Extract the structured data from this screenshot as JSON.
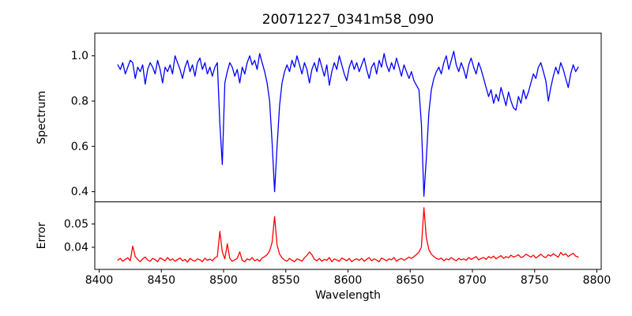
{
  "figure": {
    "title": "20071227_0341m58_090",
    "xlabel": "Wavelength"
  },
  "chart_data": {
    "type": "line",
    "title": "20071227_0341m58_090",
    "xlabel": "Wavelength",
    "grid": false,
    "legend": "none",
    "x_axis": {
      "lim": [
        8396.5,
        8803.5
      ],
      "ticks": [
        8400,
        8450,
        8500,
        8550,
        8600,
        8650,
        8700,
        8750,
        8800
      ],
      "tick_labels": [
        "8400",
        "8450",
        "8500",
        "8550",
        "8600",
        "8650",
        "8700",
        "8750",
        "8800"
      ]
    },
    "subplots": [
      {
        "name": "spectrum",
        "ylabel": "Spectrum",
        "line_color": "#0000ff",
        "ylim": [
          0.355,
          1.1
        ],
        "ytick_values": [
          1.0,
          0.8,
          0.6,
          0.4
        ],
        "yticks": [
          "1.0",
          "0.8",
          "0.6",
          "0.4"
        ],
        "absorption_line_centers": [
          8498,
          8542,
          8662
        ],
        "x_start": 8415,
        "x_step": 2,
        "values": [
          0.96,
          0.94,
          0.97,
          0.92,
          0.95,
          0.98,
          0.97,
          0.9,
          0.95,
          0.93,
          0.96,
          0.875,
          0.94,
          0.97,
          0.95,
          0.92,
          0.98,
          0.94,
          0.88,
          0.95,
          0.93,
          0.96,
          0.92,
          1.0,
          0.97,
          0.94,
          0.9,
          0.95,
          0.98,
          0.93,
          0.96,
          0.91,
          0.97,
          0.99,
          0.94,
          0.97,
          0.92,
          0.95,
          0.91,
          0.95,
          0.97,
          0.7,
          0.52,
          0.88,
          0.93,
          0.97,
          0.95,
          0.91,
          0.94,
          0.88,
          0.95,
          0.92,
          0.97,
          1.0,
          0.96,
          0.98,
          0.94,
          1.01,
          0.97,
          0.93,
          0.88,
          0.8,
          0.62,
          0.4,
          0.6,
          0.78,
          0.88,
          0.93,
          0.96,
          0.93,
          0.98,
          0.95,
          1.0,
          0.96,
          0.92,
          0.97,
          0.94,
          0.88,
          0.94,
          0.97,
          0.93,
          0.99,
          0.95,
          0.91,
          0.96,
          0.87,
          0.93,
          0.97,
          0.94,
          1.0,
          0.96,
          0.92,
          0.89,
          0.95,
          0.98,
          0.94,
          0.97,
          0.93,
          0.96,
          0.99,
          0.94,
          0.9,
          0.95,
          0.97,
          0.92,
          0.98,
          0.95,
          1.01,
          0.96,
          0.93,
          0.97,
          0.94,
          0.99,
          0.95,
          0.91,
          0.96,
          0.93,
          0.9,
          0.93,
          0.89,
          0.87,
          0.85,
          0.7,
          0.38,
          0.55,
          0.75,
          0.85,
          0.9,
          0.93,
          0.95,
          0.92,
          0.97,
          1.0,
          0.94,
          0.98,
          1.02,
          0.96,
          0.93,
          0.97,
          0.94,
          0.9,
          0.96,
          0.99,
          0.95,
          0.92,
          0.97,
          0.94,
          0.9,
          0.86,
          0.82,
          0.85,
          0.79,
          0.83,
          0.8,
          0.86,
          0.82,
          0.78,
          0.84,
          0.8,
          0.77,
          0.76,
          0.82,
          0.79,
          0.85,
          0.81,
          0.84,
          0.88,
          0.92,
          0.9,
          0.95,
          0.97,
          0.93,
          0.89,
          0.8,
          0.86,
          0.91,
          0.95,
          0.92,
          0.97,
          0.94,
          0.9,
          0.86,
          0.92,
          0.96,
          0.93,
          0.95
        ]
      },
      {
        "name": "error",
        "ylabel": "Error",
        "line_color": "#ff0000",
        "ylim": [
          0.0305,
          0.0595
        ],
        "ytick_values": [
          0.05,
          0.04
        ],
        "yticks": [
          "0.05",
          "0.04"
        ],
        "x_start": 8415,
        "x_step": 2,
        "values": [
          0.0345,
          0.0352,
          0.034,
          0.0348,
          0.0355,
          0.0342,
          0.0405,
          0.036,
          0.0348,
          0.0338,
          0.035,
          0.0358,
          0.0345,
          0.034,
          0.0352,
          0.0347,
          0.0338,
          0.0355,
          0.0348,
          0.0342,
          0.0356,
          0.0344,
          0.035,
          0.034,
          0.0347,
          0.0354,
          0.0342,
          0.0348,
          0.0336,
          0.0352,
          0.0345,
          0.034,
          0.035,
          0.0346,
          0.0338,
          0.0353,
          0.0344,
          0.0349,
          0.0342,
          0.0355,
          0.036,
          0.0468,
          0.038,
          0.035,
          0.0415,
          0.0352,
          0.034,
          0.0346,
          0.0352,
          0.038,
          0.0344,
          0.0338,
          0.035,
          0.0345,
          0.0356,
          0.0342,
          0.0348,
          0.034,
          0.0354,
          0.036,
          0.0368,
          0.0385,
          0.042,
          0.0532,
          0.041,
          0.037,
          0.0355,
          0.0345,
          0.034,
          0.0352,
          0.0344,
          0.0338,
          0.035,
          0.0346,
          0.034,
          0.0355,
          0.0365,
          0.038,
          0.0368,
          0.0348,
          0.0342,
          0.0352,
          0.034,
          0.0348,
          0.0344,
          0.0356,
          0.0338,
          0.035,
          0.0345,
          0.034,
          0.0354,
          0.0348,
          0.0342,
          0.0352,
          0.0338,
          0.0346,
          0.035,
          0.0344,
          0.0352,
          0.034,
          0.0348,
          0.0356,
          0.0342,
          0.035,
          0.0345,
          0.0338,
          0.0354,
          0.0348,
          0.0342,
          0.035,
          0.0346,
          0.0356,
          0.034,
          0.0348,
          0.0352,
          0.0344,
          0.035,
          0.0358,
          0.0352,
          0.036,
          0.0368,
          0.038,
          0.04,
          0.057,
          0.044,
          0.039,
          0.037,
          0.036,
          0.0352,
          0.0348,
          0.0354,
          0.0342,
          0.035,
          0.0346,
          0.0356,
          0.0348,
          0.0342,
          0.0352,
          0.0346,
          0.035,
          0.0344,
          0.0356,
          0.0348,
          0.0354,
          0.036,
          0.0346,
          0.0352,
          0.0356,
          0.0348,
          0.036,
          0.0354,
          0.0362,
          0.035,
          0.0358,
          0.0364,
          0.0352,
          0.036,
          0.0355,
          0.0366,
          0.0358,
          0.0362,
          0.0368,
          0.0356,
          0.036,
          0.037,
          0.0364,
          0.0358,
          0.0366,
          0.0354,
          0.0362,
          0.037,
          0.036,
          0.0356,
          0.0368,
          0.0362,
          0.0372,
          0.0364,
          0.0358,
          0.0378,
          0.0366,
          0.0372,
          0.036,
          0.0368,
          0.0374,
          0.0362,
          0.0358
        ]
      }
    ]
  }
}
